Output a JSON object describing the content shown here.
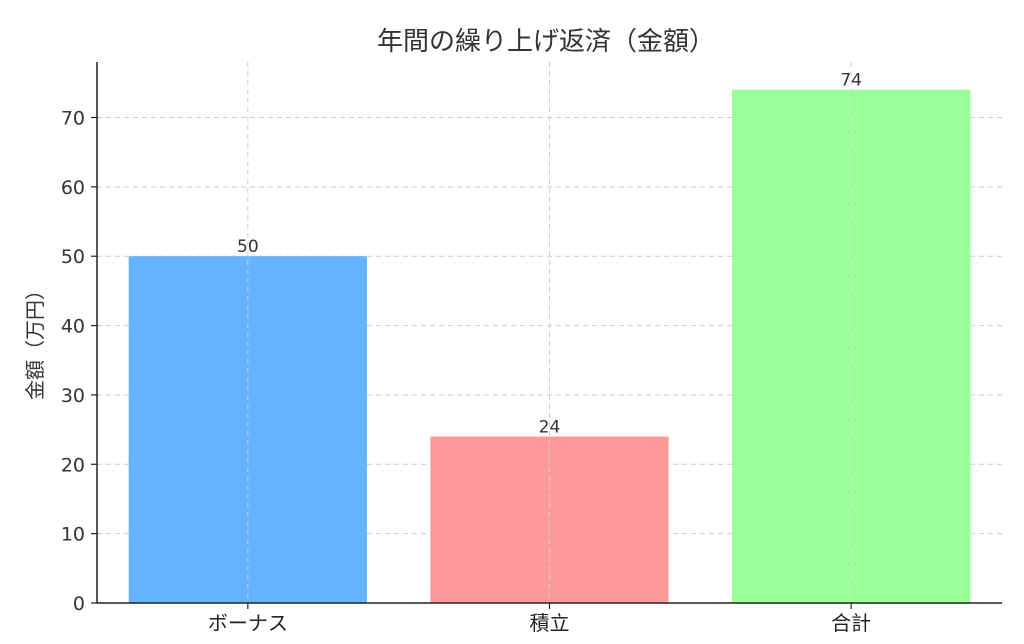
{
  "chart_data": {
    "type": "bar",
    "title": "年間の繰り上げ返済（金額）",
    "xlabel": "",
    "ylabel": "金額（万円）",
    "categories": [
      "ボーナス",
      "積立",
      "合計"
    ],
    "values": [
      50,
      24,
      74
    ],
    "data_labels": [
      "50",
      "24",
      "74"
    ],
    "colors": [
      "#66b3ff",
      "#ff9999",
      "#99ff99"
    ],
    "ylim": [
      0,
      78
    ],
    "yticks": [
      0,
      10,
      20,
      30,
      40,
      50,
      60,
      70
    ],
    "grid": true
  }
}
